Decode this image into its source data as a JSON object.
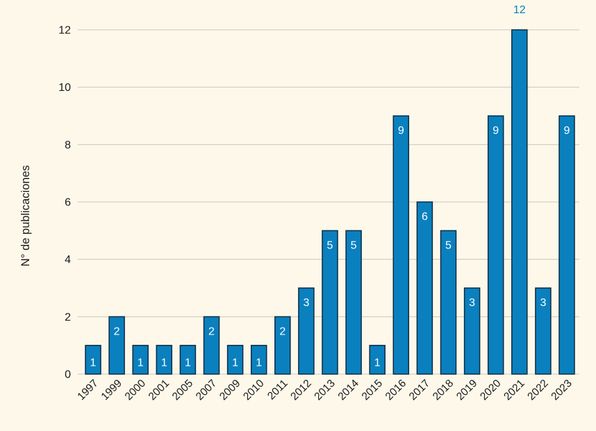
{
  "chart_data": {
    "type": "bar",
    "ylabel": "N° de publicaciones",
    "xlabel": "",
    "title": "",
    "ylim": [
      0,
      12
    ],
    "yticks": [
      "0",
      "2",
      "4",
      "6",
      "8",
      "10",
      "12"
    ],
    "grid": true,
    "bar_color": "#0a80bf",
    "label_outside_color": "#0a80bf",
    "categories": [
      "1997",
      "1999",
      "2000",
      "2001",
      "2005",
      "2007",
      "2009",
      "2010",
      "2011",
      "2012",
      "2013",
      "2014",
      "2015",
      "2016",
      "2017",
      "2018",
      "2019",
      "2020",
      "2021",
      "2022",
      "2023"
    ],
    "values": [
      1,
      2,
      1,
      1,
      1,
      2,
      1,
      1,
      2,
      3,
      5,
      5,
      1,
      9,
      6,
      5,
      3,
      9,
      12,
      3,
      9
    ]
  }
}
